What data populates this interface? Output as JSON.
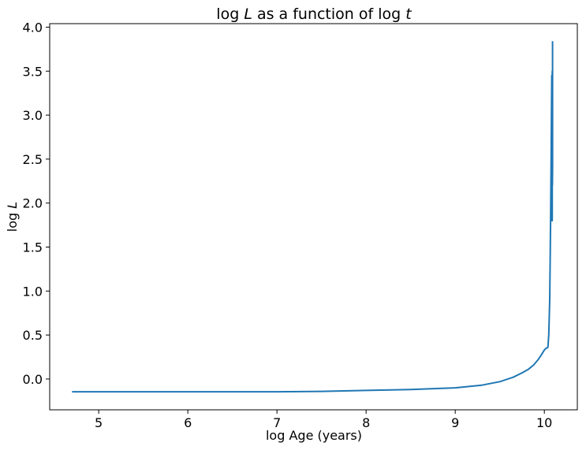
{
  "chart_data": {
    "type": "line",
    "title_pre": "log ",
    "title_var1": "L",
    "title_mid": " as a function of log ",
    "title_var2": "t",
    "xlabel": "log Age (years)",
    "ylabel_pre": "log ",
    "ylabel_var": "L",
    "xlim": [
      4.45,
      10.37
    ],
    "ylim": [
      -0.35,
      4.04
    ],
    "xticks": [
      5,
      6,
      7,
      8,
      9,
      10
    ],
    "yticks": [
      0.0,
      0.5,
      1.0,
      1.5,
      2.0,
      2.5,
      3.0,
      3.5,
      4.0
    ],
    "xtick_labels": [
      "5",
      "6",
      "7",
      "8",
      "9",
      "10"
    ],
    "ytick_labels": [
      "0.0",
      "0.5",
      "1.0",
      "1.5",
      "2.0",
      "2.5",
      "3.0",
      "3.5",
      "4.0"
    ],
    "grid": false,
    "line_color": "#1f77b4",
    "series": [
      {
        "x": [
          4.7,
          5.5,
          6.5,
          7.0,
          7.5,
          8.0,
          8.5,
          9.0,
          9.3,
          9.5,
          9.65,
          9.75,
          9.82,
          9.88,
          9.93,
          9.97,
          10.0,
          10.02,
          10.04,
          10.05,
          10.06,
          10.065,
          10.07,
          10.075,
          10.08,
          10.083,
          10.083,
          10.085,
          10.085,
          10.087,
          10.087,
          10.089,
          10.089,
          10.09,
          10.09,
          10.092,
          10.092
        ],
        "y": [
          -0.145,
          -0.145,
          -0.145,
          -0.145,
          -0.14,
          -0.13,
          -0.12,
          -0.1,
          -0.07,
          -0.03,
          0.02,
          0.07,
          0.11,
          0.16,
          0.22,
          0.28,
          0.33,
          0.35,
          0.36,
          0.5,
          0.9,
          1.3,
          1.8,
          2.4,
          3.0,
          3.45,
          1.8,
          1.8,
          3.4,
          3.4,
          1.8,
          1.8,
          3.5,
          3.5,
          2.2,
          2.4,
          3.84
        ]
      }
    ]
  }
}
